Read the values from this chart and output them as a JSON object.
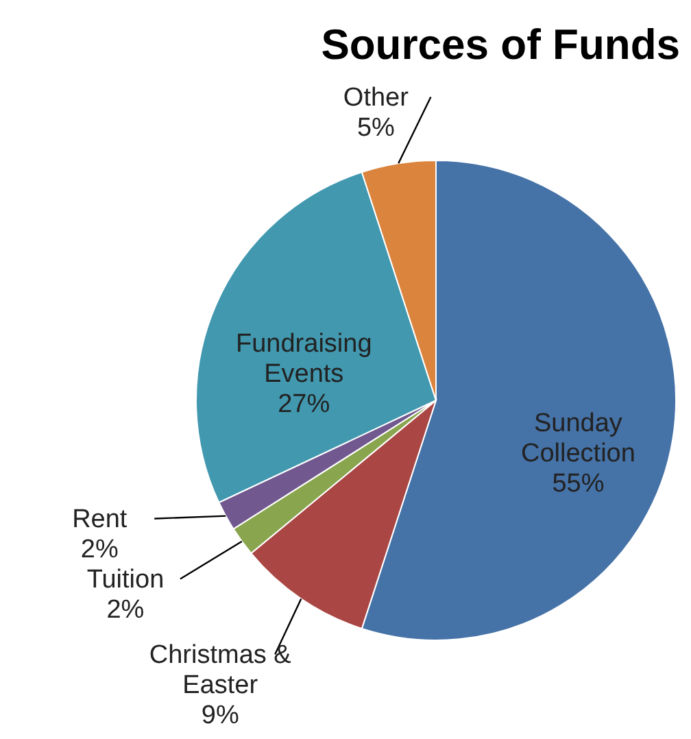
{
  "chart_data": {
    "type": "pie",
    "title": "Sources of Funds",
    "categories": [
      "Sunday Collection",
      "Christmas & Easter",
      "Tuition",
      "Rent",
      "Fundraising Events",
      "Other"
    ],
    "values": [
      55,
      9,
      2,
      2,
      27,
      5
    ],
    "colors": [
      "#4572a7",
      "#aa4643",
      "#89a54e",
      "#71588f",
      "#4198af",
      "#db843d"
    ],
    "value_labels": [
      "55%",
      "9%",
      "2%",
      "2%",
      "27%",
      "5%"
    ],
    "legend": false
  }
}
